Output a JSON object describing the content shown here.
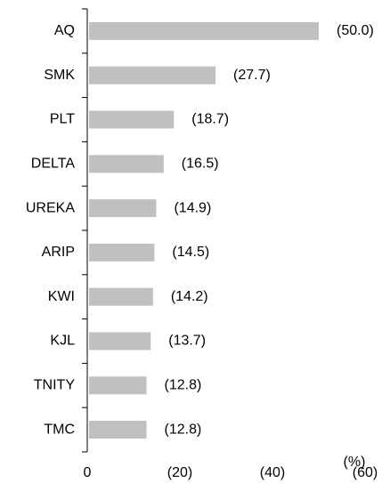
{
  "chart_data": {
    "type": "bar",
    "orientation": "horizontal",
    "categories": [
      "AQ",
      "SMK",
      "PLT",
      "DELTA",
      "UREKA",
      "ARIP",
      "KWI",
      "KJL",
      "TNITY",
      "TMC"
    ],
    "values": [
      -50.0,
      -27.7,
      -18.7,
      -16.5,
      -14.9,
      -14.5,
      -14.2,
      -13.7,
      -12.8,
      -12.8
    ],
    "value_labels": [
      "(50.0)",
      "(27.7)",
      "(18.7)",
      "(16.5)",
      "(14.9)",
      "(14.5)",
      "(14.2)",
      "(13.7)",
      "(12.8)",
      "(12.8)"
    ],
    "color": "#c0c0c0",
    "xlim": [
      0,
      -60
    ],
    "xticks": [
      0,
      {
        "value": -20,
        "label": "(20)"
      },
      {
        "value": -40,
        "label": "(40)"
      },
      {
        "value": -60,
        "label": "(60)"
      }
    ],
    "unit_label": "(%)"
  }
}
